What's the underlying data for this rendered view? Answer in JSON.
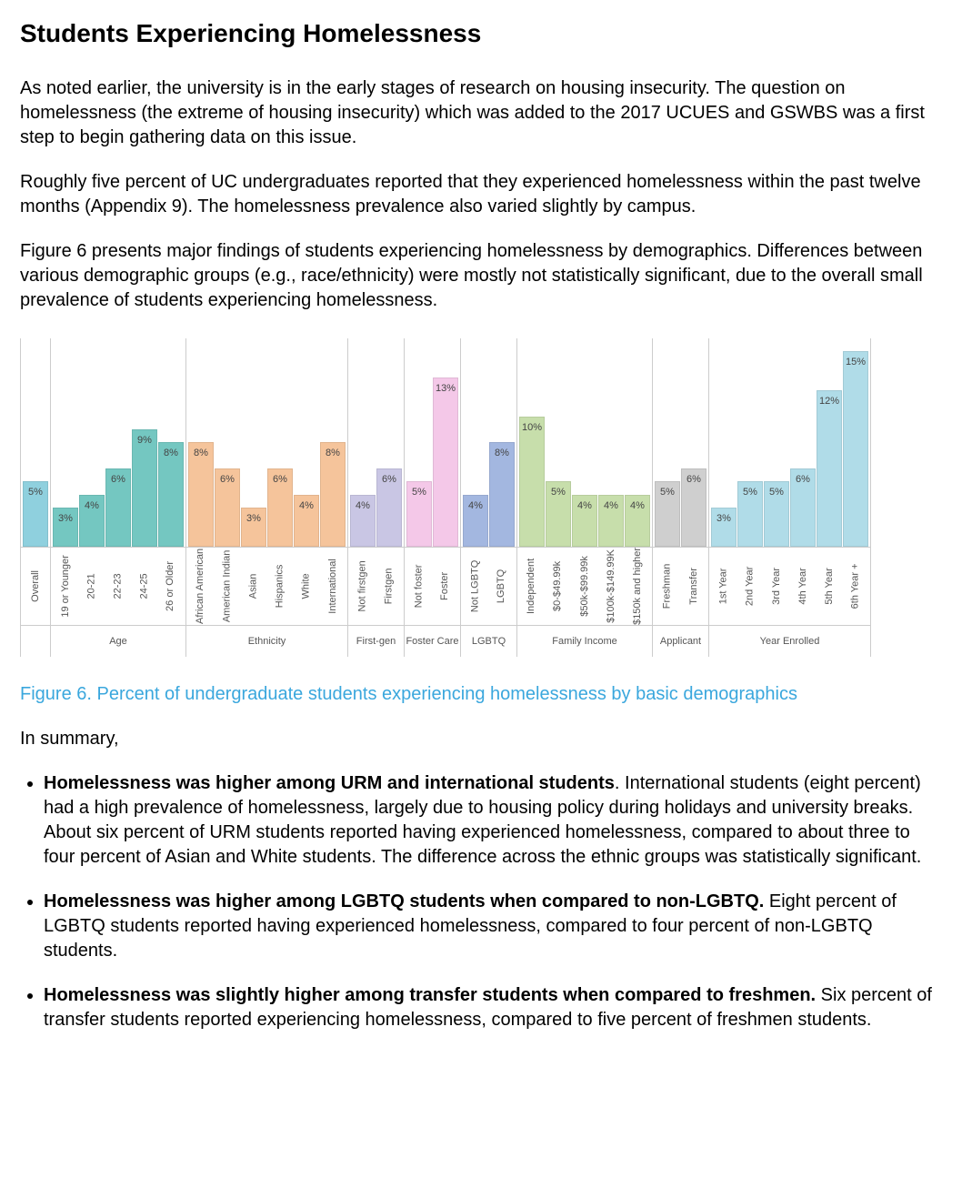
{
  "title": "Students Experiencing Homelessness",
  "para1": "As noted earlier, the university is in the early stages of research on housing insecurity. The question on homelessness (the extreme of housing insecurity) which was added to the 2017 UCUES and GSWBS was a first step to begin gathering data on this issue.",
  "para2": "Roughly five percent of UC undergraduates reported that they experienced homelessness within the past twelve months (Appendix 9). The homelessness prevalence also varied slightly by campus.",
  "para3": "Figure 6 presents major findings of students experiencing homelessness by demographics. Differences between various demographic groups (e.g., race/ethnicity) were mostly not statistically significant, due to the overall small prevalence of students experiencing homelessness.",
  "figure_caption": "Figure 6. Percent of undergraduate students experiencing homelessness by basic demographics",
  "summary_intro": "In summary,",
  "bullets": [
    {
      "lead": "Homelessness was higher among URM and international students",
      "rest": ". International students (eight percent) had a high prevalence of homelessness, largely due to housing policy during holidays and university breaks. About six percent of URM students reported having experienced homelessness, compared to about three to four percent of Asian and White students. The difference across the ethnic groups was statistically significant."
    },
    {
      "lead": "Homelessness was higher among LGBTQ students when compared to non-LGBTQ.",
      "rest": " Eight percent of LGBTQ students reported having experienced homelessness, compared to four percent of non-LGBTQ students."
    },
    {
      "lead": "Homelessness was slightly higher among transfer students when compared to freshmen.",
      "rest": " Six percent of transfer students reported experiencing homelessness, compared to five percent of freshmen students."
    }
  ],
  "chart": {
    "type": "bar",
    "y_max": 16,
    "label_fontsize": 11,
    "value_fontsize": 11,
    "bar_border_color": "rgba(0,0,0,0.08)",
    "grid_color": "#ccc",
    "text_color": "#555",
    "bar_cell_width": 28,
    "groups": [
      {
        "name": "",
        "color": "#8fd0de",
        "bars": [
          {
            "label": "Overall",
            "value": 5
          }
        ]
      },
      {
        "name": "Age",
        "color": "#74c7c1",
        "bars": [
          {
            "label": "19 or Younger",
            "value": 3
          },
          {
            "label": "20-21",
            "value": 4
          },
          {
            "label": "22-23",
            "value": 6
          },
          {
            "label": "24-25",
            "value": 9
          },
          {
            "label": "26 or Older",
            "value": 8
          }
        ]
      },
      {
        "name": "Ethnicity",
        "color": "#f5c49b",
        "bars": [
          {
            "label": "African American",
            "value": 8
          },
          {
            "label": "American Indian",
            "value": 6
          },
          {
            "label": "Asian",
            "value": 3
          },
          {
            "label": "Hispanics",
            "value": 6
          },
          {
            "label": "White",
            "value": 4
          },
          {
            "label": "International",
            "value": 8
          }
        ]
      },
      {
        "name": "First-gen",
        "color": "#c9c6e4",
        "bars": [
          {
            "label": "Not firstgen",
            "value": 4
          },
          {
            "label": "Firstgen",
            "value": 6
          }
        ]
      },
      {
        "name": "Foster Care",
        "color": "#f4c8e8",
        "bars": [
          {
            "label": "Not foster",
            "value": 5
          },
          {
            "label": "Foster",
            "value": 13
          }
        ]
      },
      {
        "name": "LGBTQ",
        "color": "#a3b7e0",
        "bars": [
          {
            "label": "Not LGBTQ",
            "value": 4
          },
          {
            "label": "LGBTQ",
            "value": 8
          }
        ]
      },
      {
        "name": "Family Income",
        "color": "#c7deab",
        "bars": [
          {
            "label": "Independent",
            "value": 10
          },
          {
            "label": "$0-$49.99k",
            "value": 5
          },
          {
            "label": "$50k-$99.99k",
            "value": 4
          },
          {
            "label": "$100k-$149.99K",
            "value": 4
          },
          {
            "label": "$150k and higher",
            "value": 4
          }
        ]
      },
      {
        "name": "Applicant",
        "color": "#cfcfcf",
        "bars": [
          {
            "label": "Freshman",
            "value": 5
          },
          {
            "label": "Transfer",
            "value": 6
          }
        ]
      },
      {
        "name": "Year Enrolled",
        "color": "#b0dce8",
        "bars": [
          {
            "label": "1st Year",
            "value": 3
          },
          {
            "label": "2nd Year",
            "value": 5
          },
          {
            "label": "3rd Year",
            "value": 5
          },
          {
            "label": "4th Year",
            "value": 6
          },
          {
            "label": "5th Year",
            "value": 12
          },
          {
            "label": "6th Year +",
            "value": 15
          }
        ]
      }
    ]
  }
}
